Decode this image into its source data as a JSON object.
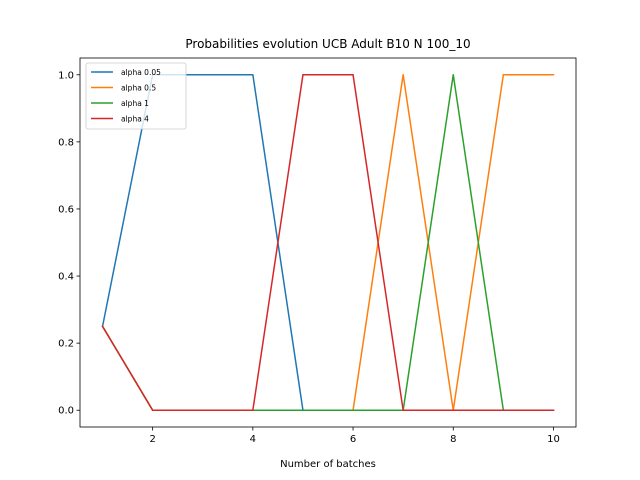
{
  "chart_data": {
    "type": "line",
    "title": "Probabilities evolution UCB Adult B10 N 100_10",
    "xlabel": "Number of batches",
    "ylabel": "",
    "xlim": [
      0.55,
      10.45
    ],
    "ylim": [
      -0.05,
      1.05
    ],
    "xticks": [
      2,
      4,
      6,
      8,
      10
    ],
    "yticks": [
      0.0,
      0.2,
      0.4,
      0.6,
      0.8,
      1.0
    ],
    "xtick_labels": [
      "2",
      "4",
      "6",
      "8",
      "10"
    ],
    "ytick_labels": [
      "0.0",
      "0.2",
      "0.4",
      "0.6",
      "0.8",
      "1.0"
    ],
    "grid": false,
    "legend_position": "top-left",
    "x": [
      1,
      2,
      3,
      4,
      5,
      6,
      7,
      8,
      9,
      10
    ],
    "series": [
      {
        "name": "alpha 0.05",
        "color": "#1f77b4",
        "values": [
          0.25,
          1.0,
          1.0,
          1.0,
          0.0,
          0.0,
          0.0,
          0.0,
          0.0,
          0.0
        ]
      },
      {
        "name": "alpha 0.5",
        "color": "#ff7f0e",
        "values": [
          0.25,
          0.0,
          0.0,
          0.0,
          0.0,
          0.0,
          1.0,
          0.0,
          1.0,
          1.0
        ]
      },
      {
        "name": "alpha 1",
        "color": "#2ca02c",
        "values": [
          0.25,
          0.0,
          0.0,
          0.0,
          0.0,
          0.0,
          0.0,
          1.0,
          0.0,
          0.0
        ]
      },
      {
        "name": "alpha 4",
        "color": "#d62728",
        "values": [
          0.25,
          0.0,
          0.0,
          0.0,
          1.0,
          1.0,
          0.0,
          0.0,
          0.0,
          0.0
        ]
      }
    ]
  }
}
